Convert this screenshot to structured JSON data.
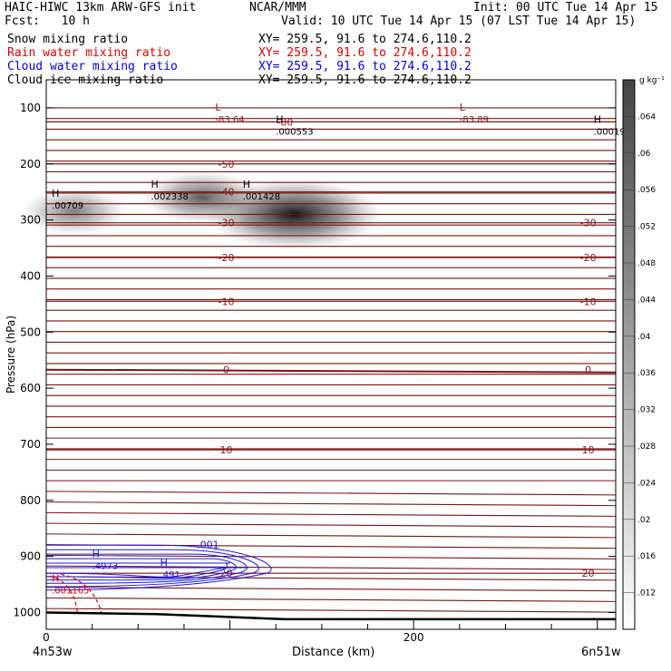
{
  "header": {
    "model": "HAIC-HIWC 13km ARW-GFS init",
    "org": "NCAR/MMM",
    "init": "Init: 00 UTC Tue 14 Apr 15",
    "fcst": "Fcst:   10 h",
    "valid": "Valid: 10 UTC Tue 14 Apr 15 (07 LST Tue 14 Apr 15)"
  },
  "fields": [
    {
      "name": "Snow mixing ratio",
      "xy": "XY= 259.5, 91.6 to 274.6,110.2",
      "color": "#000000"
    },
    {
      "name": "Rain water mixing ratio",
      "xy": "XY= 259.5, 91.6 to 274.6,110.2",
      "color": "#e00000"
    },
    {
      "name": "Cloud water mixing ratio",
      "xy": "XY= 259.5, 91.6 to 274.6,110.2",
      "color": "#0000e0"
    },
    {
      "name": "Cloud ice mixing ratio",
      "xy": "XY= 259.5, 91.6 to 274.6,110.2",
      "color": "#000000"
    }
  ],
  "chart_data": {
    "type": "heatmap",
    "xlabel": "Distance (km)",
    "ylabel": "Pressure (hPa)",
    "xlim": [
      0,
      310
    ],
    "ylim": [
      50,
      1030
    ],
    "x_ticks": [
      0,
      200
    ],
    "y_ticks": [
      100,
      200,
      300,
      400,
      500,
      600,
      700,
      800,
      900,
      1000
    ],
    "left_point": "4n53w",
    "right_point": "6n51w",
    "colorbar": {
      "unit": "g kg⁻¹",
      "ticks": [
        ".012",
        ".016",
        ".02",
        ".024",
        ".028",
        ".032",
        ".036",
        ".04",
        ".044",
        ".048",
        ".052",
        ".056",
        ".06",
        ".064"
      ]
    },
    "temperature_contours": [
      {
        "label": "-80",
        "p": 125
      },
      {
        "label": "-50",
        "p": 200
      },
      {
        "label": "-40",
        "p": 250
      },
      {
        "label": "-30",
        "p": 305
      },
      {
        "label": "-20",
        "p": 367
      },
      {
        "label": "-10",
        "p": 445
      },
      {
        "label": "0",
        "p": 567
      },
      {
        "label": "10",
        "p": 710
      },
      {
        "label": "20",
        "p": 930
      }
    ],
    "extrema": [
      {
        "type": "L",
        "value": "-83.64",
        "x": 92,
        "p": 108
      },
      {
        "type": "L",
        "value": "-83.89",
        "x": 225,
        "p": 108
      },
      {
        "type": "H",
        "value": ".000553",
        "x": 125,
        "p": 130
      },
      {
        "type": "H",
        "value": ".00019",
        "x": 298,
        "p": 130
      },
      {
        "type": "H",
        "value": ".00709",
        "x": 3,
        "p": 262
      },
      {
        "type": "H",
        "value": ".002338",
        "x": 57,
        "p": 246
      },
      {
        "type": "H",
        "value": ".001428",
        "x": 107,
        "p": 246
      },
      {
        "type": "H",
        "value": ".4973",
        "x": 25,
        "p": 905
      },
      {
        "type": "H",
        "value": ".491",
        "x": 62,
        "p": 920
      },
      {
        "type": "H",
        "value": ".001165",
        "x": 3,
        "p": 948
      }
    ],
    "cloud_water_labels": [
      {
        "label": ".001",
        "x": 82,
        "p": 885
      }
    ],
    "ice_blobs": [
      {
        "x": 135,
        "p": 290,
        "max": 0.064
      },
      {
        "x": 85,
        "p": 260,
        "max": 0.03
      },
      {
        "x": 15,
        "p": 285,
        "max": 0.02
      }
    ]
  }
}
